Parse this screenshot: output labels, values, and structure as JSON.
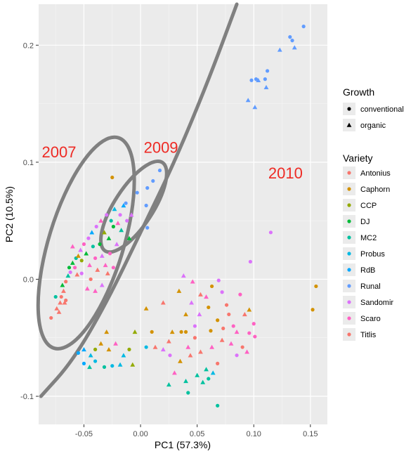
{
  "chart_data": {
    "type": "scatter",
    "xlabel": "PC1 (57.3%)",
    "ylabel": "PC2 (10.5%)",
    "xlim": [
      -0.09,
      0.165
    ],
    "ylim": [
      -0.124,
      0.235
    ],
    "x_ticks": [
      -0.05,
      0.0,
      0.05,
      0.1,
      0.15
    ],
    "x_tick_labels": [
      "-0.05",
      "0.00",
      "0.05",
      "0.10",
      "0.15"
    ],
    "y_ticks": [
      -0.1,
      0.0,
      0.1,
      0.2
    ],
    "y_tick_labels": [
      "-0.1",
      "0.0",
      "0.1",
      "0.2"
    ],
    "grid": true,
    "legend_position": "right",
    "legend_growth": {
      "title": "Growth",
      "items": [
        {
          "label": "conventional",
          "shape": "circle"
        },
        {
          "label": "organic",
          "shape": "triangle"
        }
      ]
    },
    "legend_variety": {
      "title": "Variety",
      "items": [
        {
          "label": "Antonius",
          "color": "#F8766D"
        },
        {
          "label": "Caphorn",
          "color": "#D39200"
        },
        {
          "label": "CCP",
          "color": "#93AA00"
        },
        {
          "label": "DJ",
          "color": "#00BA38"
        },
        {
          "label": "MC2",
          "color": "#00C19F"
        },
        {
          "label": "Probus",
          "color": "#00B9E3"
        },
        {
          "label": "RdB",
          "color": "#00A8FF"
        },
        {
          "label": "Runal",
          "color": "#619CFF"
        },
        {
          "label": "Sandomir",
          "color": "#DB72FB"
        },
        {
          "label": "Scaro",
          "color": "#FF61C3"
        },
        {
          "label": "Titlis",
          "color": "#F8766D"
        }
      ]
    },
    "annotations": [
      {
        "text": "2007",
        "x": -0.072,
        "y": 0.104
      },
      {
        "text": "2009",
        "x": 0.018,
        "y": 0.108
      },
      {
        "text": "2010",
        "x": 0.128,
        "y": 0.086
      }
    ],
    "ellipses": [
      {
        "label": "2007",
        "cx": -0.048,
        "cy": 0.031,
        "rx": 0.033,
        "ry": 0.094,
        "angle_deg": 17
      },
      {
        "label": "2009",
        "cx": -0.006,
        "cy": 0.062,
        "rx": 0.017,
        "ry": 0.045,
        "angle_deg": 33
      }
    ],
    "boundary_curve": [
      [
        -0.088,
        -0.1
      ],
      [
        -0.06,
        -0.07
      ],
      [
        -0.03,
        -0.02
      ],
      [
        0.0,
        0.04
      ],
      [
        0.03,
        0.1
      ],
      [
        0.06,
        0.17
      ],
      [
        0.085,
        0.235
      ]
    ],
    "points": [
      {
        "x": -0.079,
        "y": -0.033,
        "c": "Antonius",
        "g": "conventional"
      },
      {
        "x": -0.074,
        "y": -0.025,
        "c": "Antonius",
        "g": "organic"
      },
      {
        "x": -0.071,
        "y": -0.02,
        "c": "Titlis",
        "g": "organic"
      },
      {
        "x": -0.07,
        "y": -0.015,
        "c": "Antonius",
        "g": "conventional"
      },
      {
        "x": -0.068,
        "y": -0.01,
        "c": "Antonius",
        "g": "organic"
      },
      {
        "x": -0.066,
        "y": -0.018,
        "c": "Titlis",
        "g": "conventional"
      },
      {
        "x": -0.069,
        "y": -0.005,
        "c": "DJ",
        "g": "organic"
      },
      {
        "x": -0.066,
        "y": -0.002,
        "c": "Antonius",
        "g": "conventional"
      },
      {
        "x": -0.064,
        "y": 0.003,
        "c": "MC2",
        "g": "organic"
      },
      {
        "x": -0.062,
        "y": 0.006,
        "c": "Sandomir",
        "g": "conventional"
      },
      {
        "x": -0.063,
        "y": 0.01,
        "c": "DJ",
        "g": "conventional"
      },
      {
        "x": -0.06,
        "y": 0.014,
        "c": "DJ",
        "g": "organic"
      },
      {
        "x": -0.058,
        "y": 0.01,
        "c": "Scaro",
        "g": "conventional"
      },
      {
        "x": -0.057,
        "y": 0.018,
        "c": "MC2",
        "g": "conventional"
      },
      {
        "x": -0.055,
        "y": 0.02,
        "c": "Caphorn",
        "g": "organic"
      },
      {
        "x": -0.053,
        "y": 0.025,
        "c": "Sandomir",
        "g": "organic"
      },
      {
        "x": -0.052,
        "y": 0.016,
        "c": "CCP",
        "g": "conventional"
      },
      {
        "x": -0.05,
        "y": 0.03,
        "c": "Scaro",
        "g": "conventional"
      },
      {
        "x": -0.048,
        "y": 0.022,
        "c": "DJ",
        "g": "organic"
      },
      {
        "x": -0.046,
        "y": 0.035,
        "c": "Sandomir",
        "g": "conventional"
      },
      {
        "x": -0.045,
        "y": 0.012,
        "c": "Scaro",
        "g": "organic"
      },
      {
        "x": -0.043,
        "y": 0.04,
        "c": "RdB",
        "g": "organic"
      },
      {
        "x": -0.042,
        "y": 0.028,
        "c": "MC2",
        "g": "conventional"
      },
      {
        "x": -0.04,
        "y": 0.018,
        "c": "Scaro",
        "g": "conventional"
      },
      {
        "x": -0.039,
        "y": 0.045,
        "c": "Sandomir",
        "g": "conventional"
      },
      {
        "x": -0.038,
        "y": 0.008,
        "c": "Titlis",
        "g": "organic"
      },
      {
        "x": -0.036,
        "y": 0.03,
        "c": "DJ",
        "g": "conventional"
      },
      {
        "x": -0.035,
        "y": 0.05,
        "c": "Scaro",
        "g": "organic"
      },
      {
        "x": -0.034,
        "y": 0.02,
        "c": "Sandomir",
        "g": "organic"
      },
      {
        "x": -0.032,
        "y": 0.04,
        "c": "CCP",
        "g": "organic"
      },
      {
        "x": -0.031,
        "y": 0.012,
        "c": "Scaro",
        "g": "organic"
      },
      {
        "x": -0.03,
        "y": 0.055,
        "c": "Sandomir",
        "g": "conventional"
      },
      {
        "x": -0.028,
        "y": 0.035,
        "c": "DJ",
        "g": "organic"
      },
      {
        "x": -0.027,
        "y": 0.022,
        "c": "Scaro",
        "g": "conventional"
      },
      {
        "x": -0.026,
        "y": 0.05,
        "c": "MC2",
        "g": "conventional"
      },
      {
        "x": -0.024,
        "y": 0.045,
        "c": "DJ",
        "g": "conventional"
      },
      {
        "x": -0.023,
        "y": 0.06,
        "c": "Probus",
        "g": "organic"
      },
      {
        "x": -0.021,
        "y": 0.03,
        "c": "Sandomir",
        "g": "organic"
      },
      {
        "x": -0.02,
        "y": 0.048,
        "c": "Scaro",
        "g": "organic"
      },
      {
        "x": -0.018,
        "y": 0.055,
        "c": "Sandomir",
        "g": "conventional"
      },
      {
        "x": -0.017,
        "y": 0.042,
        "c": "MC2",
        "g": "organic"
      },
      {
        "x": -0.015,
        "y": 0.063,
        "c": "RdB",
        "g": "organic"
      },
      {
        "x": -0.013,
        "y": 0.065,
        "c": "Runal",
        "g": "conventional"
      },
      {
        "x": -0.012,
        "y": 0.05,
        "c": "Sandomir",
        "g": "conventional"
      },
      {
        "x": -0.01,
        "y": 0.035,
        "c": "DJ",
        "g": "organic"
      },
      {
        "x": -0.025,
        "y": 0.087,
        "c": "Caphorn",
        "g": "conventional"
      },
      {
        "x": -0.008,
        "y": 0.055,
        "c": "Sandomir",
        "g": "organic"
      },
      {
        "x": -0.003,
        "y": 0.074,
        "c": "Runal",
        "g": "conventional"
      },
      {
        "x": 0.006,
        "y": 0.078,
        "c": "Runal",
        "g": "conventional"
      },
      {
        "x": 0.011,
        "y": 0.084,
        "c": "Runal",
        "g": "conventional"
      },
      {
        "x": 0.017,
        "y": 0.093,
        "c": "Runal",
        "g": "conventional"
      },
      {
        "x": 0.005,
        "y": 0.063,
        "c": "Runal",
        "g": "conventional"
      },
      {
        "x": 0.006,
        "y": 0.044,
        "c": "Runal",
        "g": "conventional"
      },
      {
        "x": -0.06,
        "y": 0.028,
        "c": "Scaro",
        "g": "organic"
      },
      {
        "x": -0.056,
        "y": 0.004,
        "c": "Titlis",
        "g": "organic"
      },
      {
        "x": -0.052,
        "y": 0.005,
        "c": "Sandomir",
        "g": "conventional"
      },
      {
        "x": -0.047,
        "y": -0.008,
        "c": "Scaro",
        "g": "organic"
      },
      {
        "x": -0.044,
        "y": 0.0,
        "c": "Titlis",
        "g": "conventional"
      },
      {
        "x": -0.04,
        "y": -0.01,
        "c": "Scaro",
        "g": "organic"
      },
      {
        "x": -0.034,
        "y": -0.005,
        "c": "Sandomir",
        "g": "organic"
      },
      {
        "x": -0.029,
        "y": 0.005,
        "c": "Titlis",
        "g": "organic"
      },
      {
        "x": -0.024,
        "y": 0.01,
        "c": "Scaro",
        "g": "conventional"
      },
      {
        "x": -0.067,
        "y": -0.02,
        "c": "Titlis",
        "g": "organic"
      },
      {
        "x": -0.075,
        "y": -0.015,
        "c": "MC2",
        "g": "conventional"
      },
      {
        "x": -0.072,
        "y": -0.028,
        "c": "Antonius",
        "g": "organic"
      },
      {
        "x": 0.095,
        "y": 0.153,
        "c": "Runal",
        "g": "organic"
      },
      {
        "x": 0.098,
        "y": 0.17,
        "c": "Runal",
        "g": "conventional"
      },
      {
        "x": 0.102,
        "y": 0.171,
        "c": "Runal",
        "g": "conventional"
      },
      {
        "x": 0.104,
        "y": 0.17,
        "c": "Runal",
        "g": "organic"
      },
      {
        "x": 0.11,
        "y": 0.171,
        "c": "Runal",
        "g": "conventional"
      },
      {
        "x": 0.112,
        "y": 0.178,
        "c": "Runal",
        "g": "conventional"
      },
      {
        "x": 0.111,
        "y": 0.164,
        "c": "Runal",
        "g": "organic"
      },
      {
        "x": 0.101,
        "y": 0.147,
        "c": "Runal",
        "g": "organic"
      },
      {
        "x": 0.123,
        "y": 0.196,
        "c": "Runal",
        "g": "organic"
      },
      {
        "x": 0.132,
        "y": 0.207,
        "c": "Runal",
        "g": "conventional"
      },
      {
        "x": 0.134,
        "y": 0.204,
        "c": "Runal",
        "g": "conventional"
      },
      {
        "x": 0.136,
        "y": 0.198,
        "c": "Runal",
        "g": "organic"
      },
      {
        "x": 0.144,
        "y": 0.216,
        "c": "Runal",
        "g": "conventional"
      },
      {
        "x": 0.115,
        "y": 0.04,
        "c": "Sandomir",
        "g": "conventional"
      },
      {
        "x": 0.097,
        "y": 0.015,
        "c": "Sandomir",
        "g": "conventional"
      },
      {
        "x": 0.155,
        "y": -0.006,
        "c": "Caphorn",
        "g": "conventional"
      },
      {
        "x": 0.152,
        "y": -0.026,
        "c": "Caphorn",
        "g": "conventional"
      },
      {
        "x": 0.038,
        "y": 0.003,
        "c": "Sandomir",
        "g": "organic"
      },
      {
        "x": 0.046,
        "y": -0.002,
        "c": "Scaro",
        "g": "organic"
      },
      {
        "x": 0.034,
        "y": -0.01,
        "c": "Caphorn",
        "g": "organic"
      },
      {
        "x": 0.053,
        "y": -0.013,
        "c": "Titlis",
        "g": "organic"
      },
      {
        "x": 0.045,
        "y": -0.02,
        "c": "Sandomir",
        "g": "organic"
      },
      {
        "x": 0.063,
        "y": -0.006,
        "c": "Caphorn",
        "g": "conventional"
      },
      {
        "x": 0.069,
        "y": -0.001,
        "c": "Sandomir",
        "g": "conventional"
      },
      {
        "x": 0.06,
        "y": -0.024,
        "c": "Caphorn",
        "g": "conventional"
      },
      {
        "x": 0.072,
        "y": -0.011,
        "c": "Sandomir",
        "g": "conventional"
      },
      {
        "x": 0.058,
        "y": -0.015,
        "c": "Scaro",
        "g": "organic"
      },
      {
        "x": 0.076,
        "y": -0.022,
        "c": "Titlis",
        "g": "conventional"
      },
      {
        "x": 0.088,
        "y": -0.013,
        "c": "Scaro",
        "g": "conventional"
      },
      {
        "x": 0.092,
        "y": -0.03,
        "c": "Titlis",
        "g": "organic"
      },
      {
        "x": 0.082,
        "y": -0.04,
        "c": "Scaro",
        "g": "conventional"
      },
      {
        "x": 0.068,
        "y": -0.035,
        "c": "Caphorn",
        "g": "conventional"
      },
      {
        "x": 0.052,
        "y": -0.03,
        "c": "Sandomir",
        "g": "organic"
      },
      {
        "x": 0.04,
        "y": -0.03,
        "c": "Caphorn",
        "g": "organic"
      },
      {
        "x": 0.02,
        "y": -0.02,
        "c": "Titlis",
        "g": "organic"
      },
      {
        "x": 0.005,
        "y": -0.025,
        "c": "Caphorn",
        "g": "organic"
      },
      {
        "x": 0.04,
        "y": -0.045,
        "c": "Caphorn",
        "g": "conventional"
      },
      {
        "x": 0.036,
        "y": -0.045,
        "c": "Caphorn",
        "g": "conventional"
      },
      {
        "x": 0.048,
        "y": -0.05,
        "c": "Titlis",
        "g": "conventional"
      },
      {
        "x": 0.062,
        "y": -0.044,
        "c": "Caphorn",
        "g": "conventional"
      },
      {
        "x": 0.073,
        "y": -0.042,
        "c": "Titlis",
        "g": "conventional"
      },
      {
        "x": 0.096,
        "y": -0.046,
        "c": "Scaro",
        "g": "conventional"
      },
      {
        "x": 0.101,
        "y": -0.049,
        "c": "Scaro",
        "g": "conventional"
      },
      {
        "x": 0.08,
        "y": -0.055,
        "c": "Scaro",
        "g": "organic"
      },
      {
        "x": 0.09,
        "y": -0.058,
        "c": "Titlis",
        "g": "conventional"
      },
      {
        "x": 0.094,
        "y": -0.062,
        "c": "Scaro",
        "g": "organic"
      },
      {
        "x": 0.085,
        "y": -0.065,
        "c": "Sandomir",
        "g": "conventional"
      },
      {
        "x": 0.072,
        "y": -0.052,
        "c": "Titlis",
        "g": "organic"
      },
      {
        "x": 0.063,
        "y": -0.058,
        "c": "Scaro",
        "g": "organic"
      },
      {
        "x": 0.053,
        "y": -0.062,
        "c": "Titlis",
        "g": "organic"
      },
      {
        "x": 0.044,
        "y": -0.065,
        "c": "Titlis",
        "g": "organic"
      },
      {
        "x": 0.042,
        "y": -0.058,
        "c": "Scaro",
        "g": "organic"
      },
      {
        "x": 0.068,
        "y": -0.072,
        "c": "Titlis",
        "g": "conventional"
      },
      {
        "x": 0.058,
        "y": -0.077,
        "c": "MC2",
        "g": "organic"
      },
      {
        "x": 0.05,
        "y": -0.082,
        "c": "MC2",
        "g": "organic"
      },
      {
        "x": 0.06,
        "y": -0.085,
        "c": "MC2",
        "g": "conventional"
      },
      {
        "x": 0.064,
        "y": -0.08,
        "c": "Probus",
        "g": "organic"
      },
      {
        "x": 0.055,
        "y": -0.088,
        "c": "MC2",
        "g": "organic"
      },
      {
        "x": 0.04,
        "y": -0.087,
        "c": "MC2",
        "g": "organic"
      },
      {
        "x": 0.025,
        "y": -0.09,
        "c": "MC2",
        "g": "organic"
      },
      {
        "x": 0.042,
        "y": -0.097,
        "c": "MC2",
        "g": "conventional"
      },
      {
        "x": 0.068,
        "y": -0.108,
        "c": "MC2",
        "g": "conventional"
      },
      {
        "x": 0.035,
        "y": -0.07,
        "c": "Caphorn",
        "g": "organic"
      },
      {
        "x": 0.026,
        "y": -0.065,
        "c": "Sandomir",
        "g": "conventional"
      },
      {
        "x": 0.028,
        "y": -0.045,
        "c": "Caphorn",
        "g": "organic"
      },
      {
        "x": 0.025,
        "y": -0.053,
        "c": "Titlis",
        "g": "organic"
      },
      {
        "x": 0.03,
        "y": -0.08,
        "c": "Scaro",
        "g": "organic"
      },
      {
        "x": 0.02,
        "y": -0.06,
        "c": "Sandomir",
        "g": "organic"
      },
      {
        "x": 0.01,
        "y": -0.045,
        "c": "Caphorn",
        "g": "conventional"
      },
      {
        "x": 0.013,
        "y": -0.058,
        "c": "Titlis",
        "g": "organic"
      },
      {
        "x": 0.005,
        "y": -0.058,
        "c": "Probus",
        "g": "conventional"
      },
      {
        "x": -0.005,
        "y": -0.045,
        "c": "CCP",
        "g": "organic"
      },
      {
        "x": -0.01,
        "y": -0.06,
        "c": "CCP",
        "g": "conventional"
      },
      {
        "x": -0.015,
        "y": -0.065,
        "c": "Probus",
        "g": "organic"
      },
      {
        "x": -0.022,
        "y": -0.055,
        "c": "Scaro",
        "g": "organic"
      },
      {
        "x": -0.028,
        "y": -0.06,
        "c": "Caphorn",
        "g": "organic"
      },
      {
        "x": -0.03,
        "y": -0.045,
        "c": "Caphorn",
        "g": "organic"
      },
      {
        "x": -0.025,
        "y": -0.074,
        "c": "Probus",
        "g": "conventional"
      },
      {
        "x": -0.035,
        "y": -0.055,
        "c": "Caphorn",
        "g": "organic"
      },
      {
        "x": -0.04,
        "y": -0.06,
        "c": "CCP",
        "g": "conventional"
      },
      {
        "x": -0.044,
        "y": -0.065,
        "c": "Probus",
        "g": "organic"
      },
      {
        "x": -0.05,
        "y": -0.06,
        "c": "RdB",
        "g": "organic"
      },
      {
        "x": -0.055,
        "y": -0.063,
        "c": "RdB",
        "g": "conventional"
      },
      {
        "x": -0.045,
        "y": -0.075,
        "c": "MC2",
        "g": "organic"
      },
      {
        "x": -0.05,
        "y": -0.072,
        "c": "RdB",
        "g": "conventional"
      },
      {
        "x": -0.032,
        "y": -0.075,
        "c": "MC2",
        "g": "conventional"
      },
      {
        "x": -0.018,
        "y": -0.073,
        "c": "Probus",
        "g": "organic"
      },
      {
        "x": -0.007,
        "y": -0.073,
        "c": "CCP",
        "g": "organic"
      },
      {
        "x": -0.04,
        "y": -0.07,
        "c": "Probus",
        "g": "conventional"
      },
      {
        "x": 0.048,
        "y": -0.04,
        "c": "Sandomir",
        "g": "conventional"
      },
      {
        "x": 0.078,
        "y": -0.03,
        "c": "Titlis",
        "g": "conventional"
      },
      {
        "x": 0.085,
        "y": -0.045,
        "c": "Scaro",
        "g": "organic"
      },
      {
        "x": 0.1,
        "y": -0.038,
        "c": "Scaro",
        "g": "conventional"
      },
      {
        "x": 0.096,
        "y": -0.026,
        "c": "Caphorn",
        "g": "organic"
      }
    ]
  }
}
